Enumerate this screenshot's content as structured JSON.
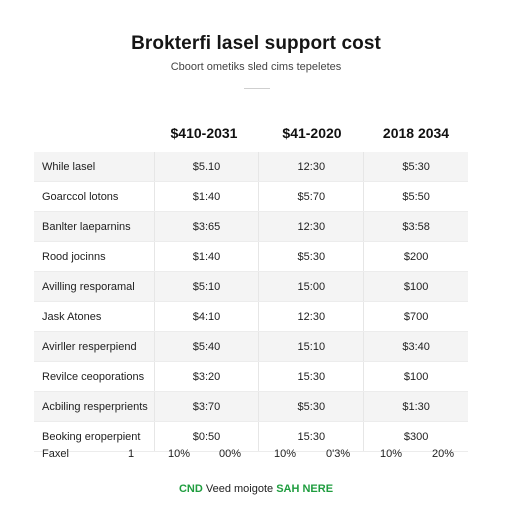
{
  "page": {
    "title": "Brokterfi lasel support cost",
    "subtitle": "Cboort ometiks sled cims tepeletes"
  },
  "columns": [
    "$410-2031",
    "$41-2020",
    "2018 2034"
  ],
  "rows": [
    {
      "label": "While lasel",
      "values": [
        "$5.10",
        "12:30",
        "$5:30"
      ]
    },
    {
      "label": "Goarccol lotons",
      "values": [
        "$1:40",
        "$5:70",
        "$5:50"
      ]
    },
    {
      "label": "Banlter laeparnins",
      "values": [
        "$3:65",
        "12:30",
        "$3:58"
      ]
    },
    {
      "label": "Rood jocinns",
      "values": [
        "$1:40",
        "$5:30",
        "$200"
      ]
    },
    {
      "label": "Avilling resporamal",
      "values": [
        "$5:10",
        "15:00",
        "$100"
      ]
    },
    {
      "label": "Jask Atones",
      "values": [
        "$4:10",
        "12:30",
        "$700"
      ]
    },
    {
      "label": "Avirller resperpiend",
      "values": [
        "$5:40",
        "15:10",
        "$3:40"
      ]
    },
    {
      "label": "Revilce ceoporations",
      "values": [
        "$3:20",
        "15:30",
        "$100"
      ]
    },
    {
      "label": "Acbiling resperprients",
      "values": [
        "$3:70",
        "$5:30",
        "$1:30"
      ]
    },
    {
      "label": "Beoking eroperpient",
      "values": [
        "$0:50",
        "15:30",
        "$300"
      ]
    }
  ],
  "footer": {
    "label": "Faxel",
    "count": "1",
    "values": [
      "10%",
      "00%",
      "10%",
      "0'3%",
      "10%",
      "20%"
    ]
  },
  "bottom_note": {
    "accent_left": "CND",
    "middle": "Veed moigote",
    "accent_right": "SAH NERE"
  }
}
